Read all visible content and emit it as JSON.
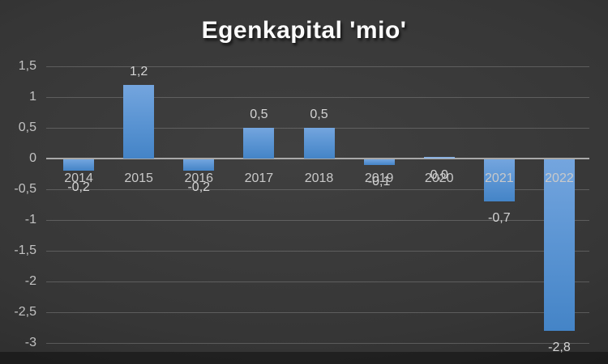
{
  "chart_data": {
    "type": "bar",
    "title": "Egenkapital 'mio'",
    "categories": [
      "2014",
      "2015",
      "2016",
      "2017",
      "2018",
      "2019",
      "2020",
      "2021",
      "2022"
    ],
    "values": [
      -0.2,
      1.2,
      -0.2,
      0.5,
      0.5,
      -0.1,
      0,
      -0.7,
      -2.8
    ],
    "value_labels": [
      "-0,2",
      "1,2",
      "-0,2",
      "0,5",
      "0,5",
      "-0,1",
      "0,0",
      "-0,7",
      "-2,8"
    ],
    "y_axis": {
      "tick_labels": [
        "1,5",
        "1",
        "0,5",
        "0",
        "-0,5",
        "-1",
        "-1,5",
        "-2",
        "-2,5",
        "-3"
      ],
      "tick_values": [
        1.5,
        1,
        0.5,
        0,
        -0.5,
        -1,
        -1.5,
        -2,
        -2.5,
        -3
      ],
      "min": -3,
      "max": 1.5,
      "step": 0.5
    },
    "grid": true,
    "legend": "none",
    "decimal_separator": ",",
    "colors": {
      "bar_gradient_top": "#74a5de",
      "bar_gradient_bottom": "#4484c7",
      "zero_value_bar": "#8cb2e0",
      "gridline": "#5c5c5c",
      "zero_line": "#a9a9a9",
      "tick_label": "#c2c2c2",
      "category_label": "#c9c9c9",
      "data_label": "#d4d4d4",
      "title": "#fbfbfb",
      "background": "#343434"
    }
  }
}
